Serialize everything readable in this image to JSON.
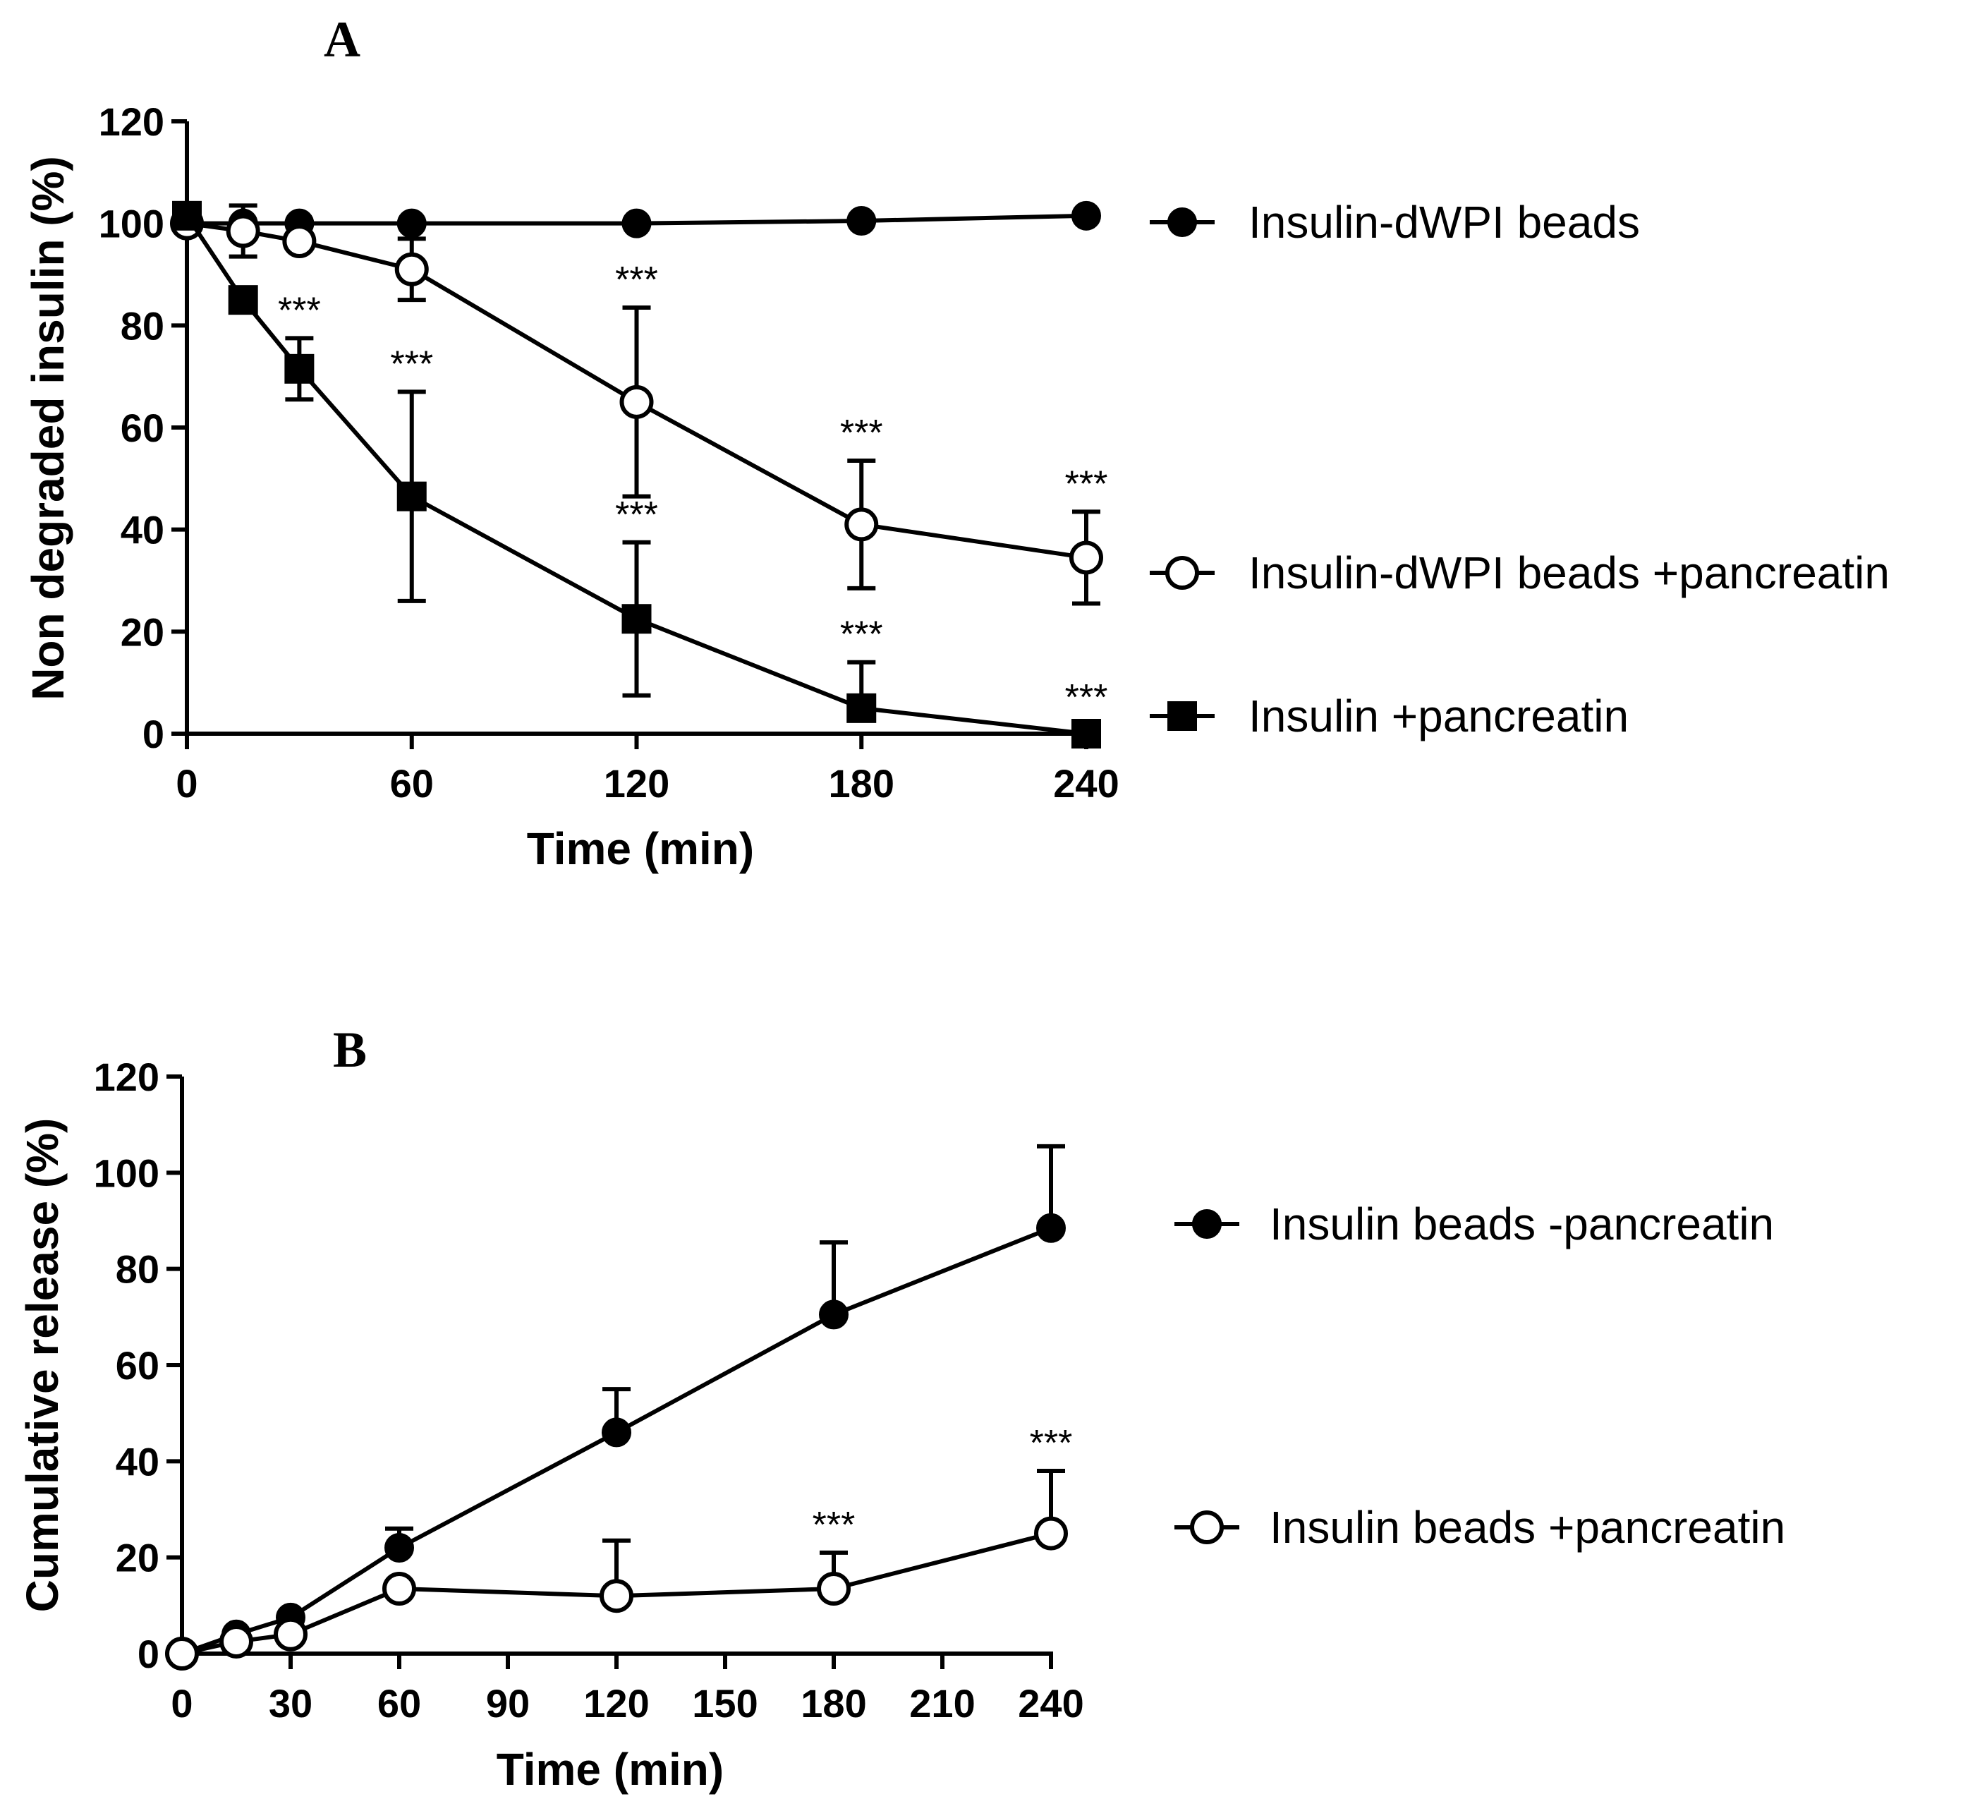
{
  "chart_data": [
    {
      "type": "line",
      "panel": "A",
      "xlabel": "Time (min)",
      "ylabel": "Non degraded insulin (%)",
      "xlim": [
        0,
        240
      ],
      "ylim": [
        0,
        120
      ],
      "xticks": [
        0,
        60,
        120,
        180,
        240
      ],
      "yticks": [
        0,
        20,
        40,
        60,
        80,
        100,
        120
      ],
      "series": [
        {
          "name": "Insulin-dWPI beads",
          "marker": "filled-circle",
          "x": [
            0,
            15,
            30,
            60,
            120,
            180,
            240
          ],
          "y": [
            100,
            100,
            100,
            100,
            100,
            100.5,
            101.5
          ],
          "err": [
            0,
            0,
            0,
            0,
            0,
            0,
            0
          ],
          "sig": [
            "",
            "",
            "",
            "",
            "",
            "",
            ""
          ]
        },
        {
          "name": "Insulin-dWPI beads +pancreatin",
          "marker": "open-circle",
          "x": [
            0,
            15,
            30,
            60,
            120,
            180,
            240
          ],
          "y": [
            100,
            98.5,
            96.5,
            91,
            65,
            41,
            34.5
          ],
          "err": [
            0,
            5,
            0,
            6,
            18.5,
            12.5,
            9
          ],
          "sig": [
            "",
            "",
            "",
            "",
            "***",
            "***",
            "***"
          ]
        },
        {
          "name": "Insulin +pancreatin",
          "marker": "filled-square",
          "x": [
            0,
            15,
            30,
            60,
            120,
            180,
            240
          ],
          "y": [
            101.5,
            85,
            71.5,
            46.5,
            22.5,
            5,
            0
          ],
          "err": [
            0,
            0,
            6,
            20.5,
            15,
            9,
            0
          ],
          "sig": [
            "",
            "",
            "***",
            "***",
            "***",
            "***",
            "***"
          ]
        }
      ]
    },
    {
      "type": "line",
      "panel": "B",
      "xlabel": "Time (min)",
      "ylabel": "Cumulative release (%)",
      "xlim": [
        0,
        240
      ],
      "ylim": [
        0,
        120
      ],
      "xticks": [
        0,
        30,
        60,
        90,
        120,
        150,
        180,
        210,
        240
      ],
      "yticks": [
        0,
        20,
        40,
        60,
        80,
        100,
        120
      ],
      "series": [
        {
          "name": "Insulin beads -pancreatin",
          "marker": "filled-circle",
          "x": [
            0,
            15,
            30,
            60,
            120,
            180,
            240
          ],
          "y": [
            0,
            4,
            7.5,
            22,
            46,
            70.5,
            88.5
          ],
          "err": [
            0,
            0,
            0,
            4,
            9,
            15,
            17
          ],
          "sig": [
            "",
            "",
            "",
            "",
            "",
            "",
            ""
          ]
        },
        {
          "name": "Insulin beads +pancreatin",
          "marker": "open-circle",
          "x": [
            0,
            15,
            30,
            60,
            120,
            180,
            240
          ],
          "y": [
            0,
            2.5,
            4,
            13.5,
            12,
            13.5,
            25
          ],
          "err": [
            0,
            0,
            0,
            0,
            11.5,
            7.5,
            13
          ],
          "sig": [
            "",
            "",
            "",
            "",
            "",
            "***",
            "***"
          ]
        }
      ]
    }
  ]
}
